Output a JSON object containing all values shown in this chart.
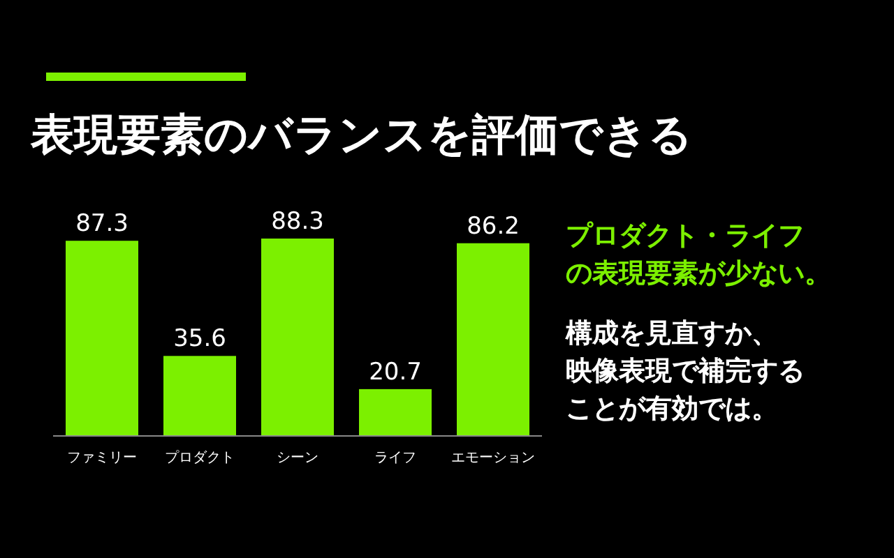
{
  "chart_data": {
    "type": "bar",
    "title": "表現要素のバランスを評価できる",
    "categories": [
      "ファミリー",
      "プロダクト",
      "シーン",
      "ライフ",
      "エモーション"
    ],
    "values": [
      87.3,
      35.6,
      88.3,
      20.7,
      86.2
    ],
    "color": "#7cf000",
    "data_labels": true,
    "annotations": [
      "プロダクト・ライフ",
      "の表現要素が少ない。",
      "構成を見直すか、",
      "映像表現で補完する",
      "ことが有効では。"
    ]
  }
}
